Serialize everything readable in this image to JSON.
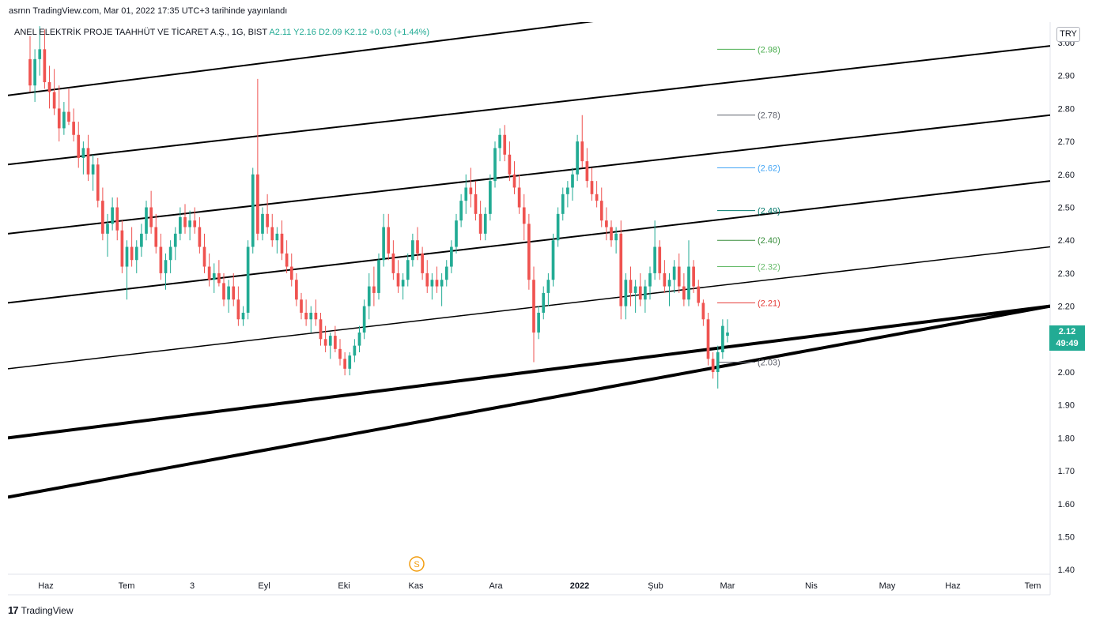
{
  "header": {
    "publish_line": "asrnn TradingView.com, Mar 01, 2022 17:35 UTC+3 tarihinde yayınlandı"
  },
  "legend": {
    "symbol": "ANEL ELEKTRİK PROJE TAAHHÜT VE TİCARET A.Ş., 1G, BIST",
    "o": "A2.11",
    "h": "Y2.16",
    "l": "D2.09",
    "c": "K2.12",
    "change": "+0.03 (+1.44%)"
  },
  "currency_badge": "TRY",
  "last_price": {
    "price": "2.12",
    "countdown": "49:49"
  },
  "footer": {
    "logo_mark": "17",
    "brand": "TradingView"
  },
  "colors": {
    "up": "#22ab94",
    "down": "#ef5350",
    "channel": "#000000",
    "grid_text": "#131722"
  },
  "chart_data": {
    "type": "candlestick",
    "title": "",
    "y_ticks": [
      "3.00",
      "2.90",
      "2.80",
      "2.70",
      "2.60",
      "2.50",
      "2.40",
      "2.30",
      "2.20",
      "2.10",
      "2.00",
      "1.90",
      "1.80",
      "1.70",
      "1.60",
      "1.50",
      "1.40"
    ],
    "ylim": [
      1.4,
      3.02
    ],
    "x_ticks": [
      "Haz",
      "Tem",
      "3",
      "Eyl",
      "Eki",
      "Kas",
      "Ara",
      "2022",
      "Şub",
      "Mar",
      "Nis",
      "May",
      "Haz",
      "Tem"
    ],
    "x_tick_bold": [
      "2022"
    ],
    "grid": false,
    "events": [
      {
        "label": "S",
        "x_bar": 126
      }
    ],
    "price_levels": [
      {
        "value": 2.98,
        "label": "(2.98)",
        "color": "#4caf50"
      },
      {
        "value": 2.78,
        "label": "(2.78)",
        "color": "#5d606b"
      },
      {
        "value": 2.62,
        "label": "(2.62)",
        "color": "#42a5f5"
      },
      {
        "value": 2.49,
        "label": "(2.49)",
        "color": "#00796b"
      },
      {
        "value": 2.4,
        "label": "(2.40)",
        "color": "#388e3c"
      },
      {
        "value": 2.32,
        "label": "(2.32)",
        "color": "#66bb6a"
      },
      {
        "value": 2.21,
        "label": "(2.21)",
        "color": "#e53935"
      },
      {
        "value": 2.03,
        "label": "(2.03)",
        "color": "#5d606b"
      }
    ],
    "channel_lines": [
      {
        "start": 2.84,
        "end": 3.24,
        "width": 2
      },
      {
        "start": 2.63,
        "end": 2.99,
        "width": 2
      },
      {
        "start": 2.42,
        "end": 2.78,
        "width": 2
      },
      {
        "start": 2.21,
        "end": 2.58,
        "width": 2
      },
      {
        "start": 2.01,
        "end": 2.38,
        "width": 1.5
      },
      {
        "start": 1.8,
        "end": 2.2,
        "width": 4
      },
      {
        "start": 1.62,
        "end": 2.2,
        "width": 4
      }
    ],
    "candles_ohlc_approx": "daily BIST bars Jun 2021 - Mar 2022, last bar O 2.11 H 2.16 L 2.09 C 2.12"
  }
}
